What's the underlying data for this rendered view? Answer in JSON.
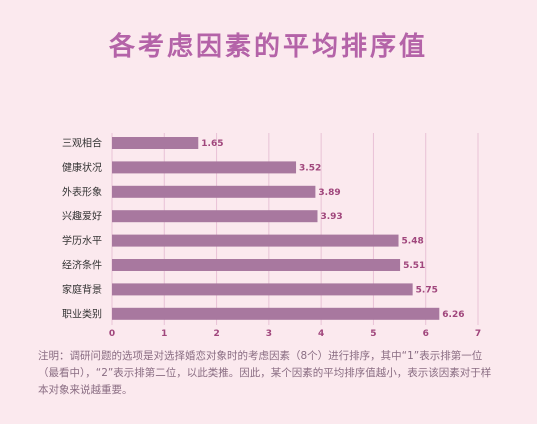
{
  "chart_data": {
    "type": "bar",
    "orientation": "horizontal",
    "title": "各考虑因素的平均排序值",
    "categories": [
      "三观相合",
      "健康状况",
      "外表形象",
      "兴趣爱好",
      "学历水平",
      "经济条件",
      "家庭背景",
      "职业类别"
    ],
    "values": [
      1.65,
      3.52,
      3.89,
      3.93,
      5.48,
      5.51,
      5.75,
      6.26
    ],
    "value_labels": [
      "1.65",
      "3.52",
      "3.89",
      "3.93",
      "5.48",
      "5.51",
      "5.75",
      "6.26"
    ],
    "xlim": [
      0,
      7
    ],
    "x_ticks": [
      "0",
      "1",
      "2",
      "3",
      "4",
      "5",
      "6",
      "7"
    ],
    "grid": true,
    "bar_color": "#a8789f",
    "grid_color": "#e8c2d6",
    "title_color": "#b463a8"
  },
  "note": "注明：调研问题的选项是对选择婚恋对象时的考虑因素（8个）进行排序，其中“1”表示排第一位（最看中），“2”表示排第二位，以此类推。因此，某个因素的平均排序值越小，表示该因素对于样本对象来说越重要。"
}
